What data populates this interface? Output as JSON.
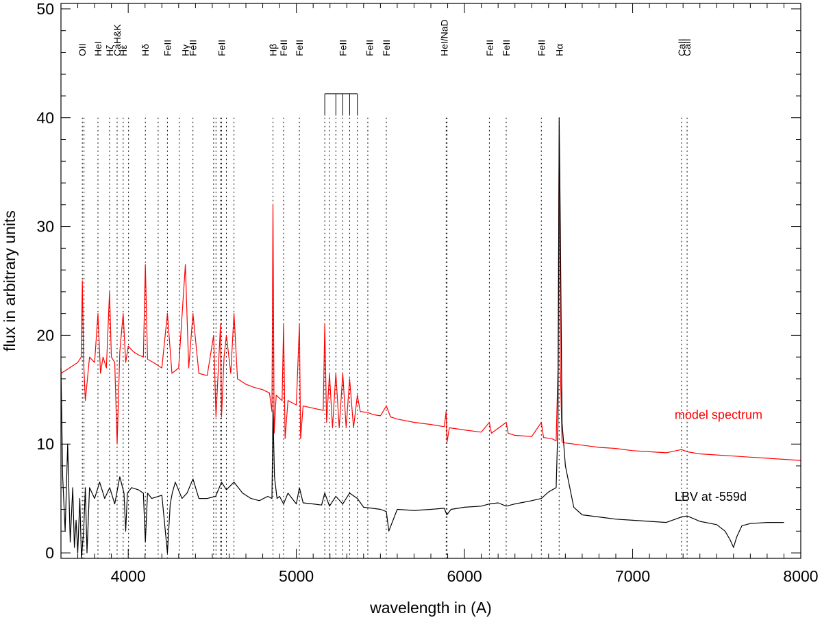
{
  "chart_data": {
    "type": "line",
    "xlabel": "wavelength in (A)",
    "ylabel": "flux in arbitrary units",
    "xlim": [
      3600,
      8000
    ],
    "ylim": [
      -0.5,
      50.5
    ],
    "xticks": [
      4000,
      5000,
      6000,
      7000,
      8000
    ],
    "xtick_labels": [
      "4000",
      "5000",
      "6000",
      "7000",
      "8000"
    ],
    "yticks": [
      0,
      10,
      20,
      30,
      40,
      50
    ],
    "ytick_labels": [
      "0",
      "10",
      "20",
      "30",
      "40",
      "50"
    ],
    "grid": false,
    "legend": "none",
    "colors": {
      "model": "#ff0000",
      "lbv": "#000000",
      "axes": "#000000"
    },
    "line_ids": [
      {
        "label": "OII",
        "wl": 3727
      },
      {
        "label": "HeI",
        "wl": 3820
      },
      {
        "label": "Hζ",
        "wl": 3889
      },
      {
        "label": "CaH&K",
        "wl": 3934
      },
      {
        "label": "Hε",
        "wl": 3970
      },
      {
        "label": "Hδ",
        "wl": 4102
      },
      {
        "label": "FeII",
        "wl": 4233
      },
      {
        "label": "Hγ",
        "wl": 4340
      },
      {
        "label": "FeII",
        "wl": 4385
      },
      {
        "label": "FeII",
        "wl": 4555
      },
      {
        "label": "Hβ",
        "wl": 4861
      },
      {
        "label": "FeII",
        "wl": 4924
      },
      {
        "label": "FeII",
        "wl": 5018
      },
      {
        "label": "FeII",
        "wl": 5276
      },
      {
        "label": "FeII",
        "wl": 5435
      },
      {
        "label": "FeII",
        "wl": 5535
      },
      {
        "label": "HeI/NaD",
        "wl": 5880
      },
      {
        "label": "FeII",
        "wl": 6150
      },
      {
        "label": "FeII",
        "wl": 6248
      },
      {
        "label": "FeII",
        "wl": 6457
      },
      {
        "label": "Hα",
        "wl": 6563
      },
      {
        "label": "CaII",
        "wl": 7291
      },
      {
        "label": "CaII",
        "wl": 7324
      }
    ],
    "marker_lines_wl": [
      3727,
      3737,
      3820,
      3889,
      3934,
      3970,
      4002,
      4102,
      4178,
      4233,
      4303,
      4385,
      4508,
      4522,
      4549,
      4555,
      4584,
      4629,
      4861,
      4924,
      5018,
      5169,
      5197,
      5235,
      5276,
      5317,
      5363,
      5425,
      5535,
      5891,
      5896,
      6148,
      6248,
      6457,
      6563,
      7291,
      7324
    ],
    "bracket": {
      "wl": [
        5169,
        5235,
        5276,
        5317,
        5363
      ],
      "y_top": 42.2,
      "y_bottom": 40.2
    },
    "series": [
      {
        "name": "model spectrum",
        "color": "#ff0000",
        "label_pos": [
          7250,
          12.3
        ],
        "x": [
          3600,
          3650,
          3700,
          3720,
          3727,
          3735,
          3745,
          3770,
          3800,
          3820,
          3835,
          3850,
          3870,
          3889,
          3900,
          3920,
          3934,
          3950,
          3970,
          3985,
          4000,
          4030,
          4060,
          4090,
          4102,
          4115,
          4150,
          4200,
          4233,
          4260,
          4300,
          4340,
          4360,
          4385,
          4420,
          4470,
          4508,
          4522,
          4549,
          4555,
          4570,
          4584,
          4610,
          4629,
          4650,
          4700,
          4750,
          4800,
          4840,
          4855,
          4861,
          4868,
          4880,
          4915,
          4924,
          4933,
          4950,
          5000,
          5018,
          5025,
          5040,
          5100,
          5160,
          5169,
          5180,
          5197,
          5215,
          5235,
          5255,
          5276,
          5296,
          5317,
          5340,
          5363,
          5380,
          5425,
          5460,
          5500,
          5535,
          5560,
          5600,
          5700,
          5800,
          5880,
          5891,
          5896,
          5910,
          6000,
          6100,
          6148,
          6160,
          6248,
          6260,
          6300,
          6400,
          6457,
          6470,
          6520,
          6545,
          6556,
          6563,
          6570,
          6580,
          6600,
          6700,
          6800,
          6900,
          7000,
          7100,
          7200,
          7291,
          7324,
          7400,
          7500,
          7600,
          7700,
          7800,
          7900,
          8000
        ],
        "y": [
          16.5,
          17,
          17.5,
          18,
          25,
          17.5,
          14,
          18,
          17.5,
          22,
          16.5,
          18,
          17,
          24,
          18,
          17.5,
          10,
          18.5,
          22,
          17.5,
          19,
          18.5,
          18.2,
          18,
          26.5,
          17.8,
          17.5,
          17,
          22,
          16.5,
          17,
          26.5,
          17,
          22,
          16.5,
          16.3,
          20,
          12.5,
          21,
          12.5,
          18,
          20,
          16.5,
          22,
          16,
          15.5,
          15.2,
          15,
          14.7,
          13,
          32,
          11,
          14.5,
          14,
          21,
          10.5,
          14,
          13.6,
          21,
          10.5,
          13.5,
          13.3,
          13.1,
          21,
          12,
          16.5,
          11.5,
          16.5,
          11.5,
          16.5,
          11.5,
          16,
          11.5,
          14.5,
          13,
          12.9,
          12.7,
          12.6,
          13.5,
          12.5,
          12.3,
          12,
          11.8,
          11.6,
          13,
          10.2,
          11.5,
          11.3,
          11.1,
          12,
          11,
          12,
          11,
          10.8,
          10.7,
          12,
          10.6,
          10.5,
          10.3,
          17,
          38,
          17,
          10.2,
          10.1,
          9.9,
          9.7,
          9.6,
          9.4,
          9.3,
          9.2,
          9.5,
          9.3,
          9.1,
          9,
          8.9,
          8.8,
          8.7,
          8.6,
          8.5
        ]
      },
      {
        "name": "LBV at -559d",
        "color": "#000000",
        "label_pos": [
          7250,
          4.8
        ],
        "x": [
          3600,
          3610,
          3625,
          3640,
          3655,
          3670,
          3680,
          3690,
          3700,
          3712,
          3722,
          3735,
          3745,
          3755,
          3770,
          3800,
          3830,
          3860,
          3890,
          3920,
          3950,
          3975,
          3985,
          3995,
          4020,
          4060,
          4090,
          4102,
          4115,
          4140,
          4200,
          4233,
          4250,
          4262,
          4280,
          4320,
          4350,
          4385,
          4420,
          4470,
          4520,
          4555,
          4584,
          4629,
          4680,
          4730,
          4780,
          4830,
          4855,
          4861,
          4870,
          4885,
          4900,
          4924,
          4950,
          5000,
          5018,
          5040,
          5100,
          5150,
          5169,
          5197,
          5235,
          5276,
          5317,
          5363,
          5400,
          5450,
          5500,
          5535,
          5550,
          5600,
          5700,
          5800,
          5880,
          5895,
          5920,
          6000,
          6100,
          6148,
          6200,
          6248,
          6300,
          6400,
          6457,
          6500,
          6545,
          6556,
          6563,
          6570,
          6580,
          6600,
          6650,
          6700,
          6800,
          6900,
          7000,
          7100,
          7200,
          7291,
          7324,
          7400,
          7500,
          7550,
          7580,
          7600,
          7620,
          7650,
          7700,
          7800,
          7900
        ],
        "y": [
          17,
          7,
          2,
          10,
          1,
          6,
          0.5,
          3,
          0,
          5,
          -0.5,
          2,
          6,
          0,
          6,
          5,
          6.5,
          5,
          6,
          4.5,
          7,
          5.5,
          2,
          5.5,
          6,
          5.8,
          5.5,
          1,
          5.5,
          5,
          5.3,
          0,
          4.5,
          5.5,
          6.5,
          5,
          5.5,
          6.8,
          5,
          5,
          5.2,
          6.5,
          5.8,
          6.5,
          5.5,
          5,
          4.8,
          5.2,
          5,
          13,
          7,
          5,
          5.2,
          4.5,
          5.5,
          4.5,
          6,
          4.6,
          4.5,
          4.4,
          5.5,
          4.3,
          5.2,
          4.5,
          5.5,
          5,
          4.2,
          4.1,
          4,
          3.8,
          2,
          4,
          3.9,
          4,
          4.1,
          3.5,
          4,
          4.2,
          4.3,
          4.5,
          4.6,
          4.3,
          4.5,
          4.8,
          5,
          5.6,
          6,
          12,
          40,
          30,
          12,
          8,
          4.2,
          3.5,
          3.3,
          3.1,
          3,
          2.9,
          2.8,
          3.3,
          3.4,
          2.9,
          2.6,
          2,
          1.2,
          0.5,
          1.5,
          2.5,
          2.7,
          2.8,
          2.8
        ]
      }
    ]
  }
}
